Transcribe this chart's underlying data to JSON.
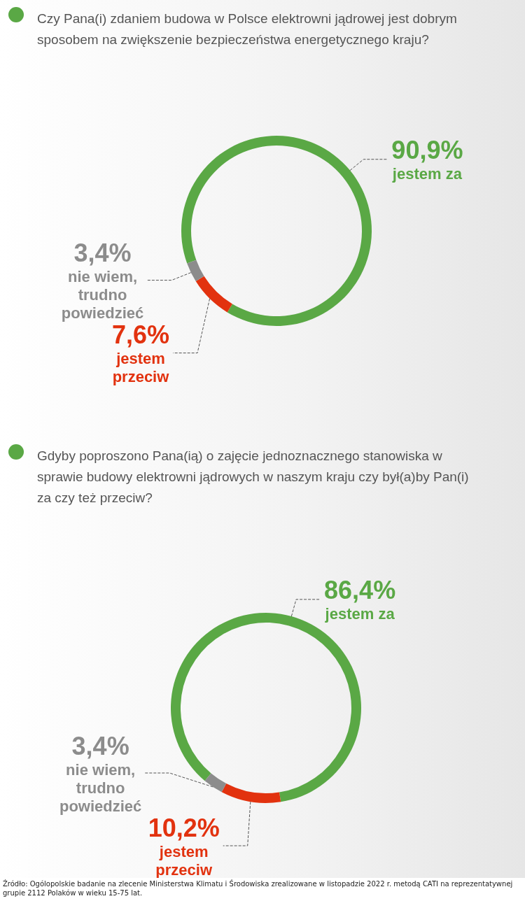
{
  "chart_data": [
    {
      "type": "donut",
      "title": "Czy Pana(i) zdaniem budowa w Polsce elektrowni jądrowej jest dobrym sposobem na zwiększenie bezpieczeństwa energetycznego kraju?",
      "categories": [
        "jestem za",
        "jestem przeciw",
        "nie wiem, trudno powiedzieć"
      ],
      "values": [
        90.9,
        7.6,
        3.4
      ],
      "value_labels": [
        "90,9%",
        "7,6%",
        "3,4%"
      ],
      "colors": [
        "#5aa845",
        "#e2320f",
        "#8c8c8c"
      ]
    },
    {
      "type": "donut",
      "title": "Gdyby poproszono Pana(ią) o zajęcie jednoznacznego stanowiska w sprawie budowy elektrowni jądrowych w naszym kraju czy był(a)by Pan(i) za czy też przeciw?",
      "categories": [
        "jestem za",
        "jestem przeciw",
        "nie wiem, trudno powiedzieć"
      ],
      "values": [
        86.4,
        10.2,
        3.4
      ],
      "value_labels": [
        "86,4%",
        "10,2%",
        "3,4%"
      ],
      "colors": [
        "#5aa845",
        "#e2320f",
        "#8c8c8c"
      ],
      "annotations": [
        "Źródło: Ogólopolskie badanie na zlecenie Ministerstwa Klimatu i Środowiska zrealizowane w listopadzie 2022 r. metodą CATI na reprezentatywnej grupie 2112 Polaków w wieku 15-75 lat."
      ]
    }
  ]
}
